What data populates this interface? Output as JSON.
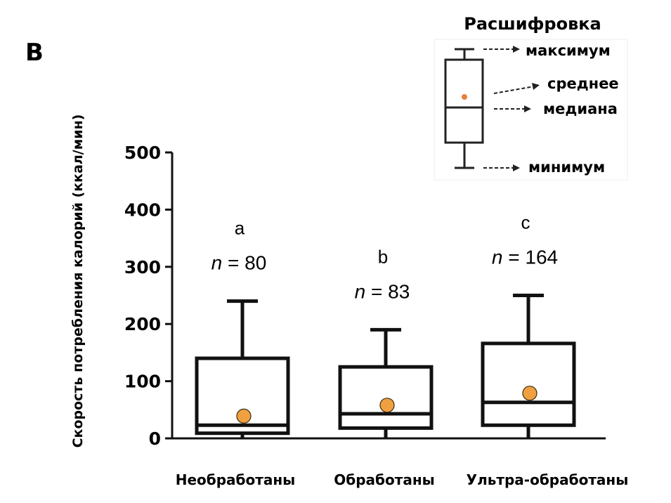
{
  "panel_label": "B",
  "chart_data": {
    "type": "box",
    "ylabel": "Скорость потребления калорий (ккал/мин)",
    "xlabel": "",
    "ylim": [
      0,
      500
    ],
    "yticks": [
      0,
      100,
      200,
      300,
      400,
      500
    ],
    "categories": [
      "Необработаны",
      "Обработаны",
      "Ультра-обработаны"
    ],
    "boxes": [
      {
        "min": 0,
        "q1": 9,
        "median": 23,
        "q3": 140,
        "max": 240,
        "mean": 39,
        "letter": "a",
        "n_label": "n",
        "n_value": "= 80"
      },
      {
        "min": 0,
        "q1": 18,
        "median": 43,
        "q3": 125,
        "max": 190,
        "mean": 58,
        "letter": "b",
        "n_label": "n",
        "n_value": "= 83"
      },
      {
        "min": 0,
        "q1": 23,
        "median": 63,
        "q3": 166,
        "max": 250,
        "mean": 79,
        "letter": "c",
        "n_label": "n",
        "n_value": "= 164"
      }
    ],
    "grid": false,
    "mean_color": "#f0a040"
  },
  "legend": {
    "title": "Расшифровка",
    "max": "максимум",
    "mean": "среднее",
    "median": "медиана",
    "min": "минимум",
    "mean_color": "#e8803a"
  }
}
